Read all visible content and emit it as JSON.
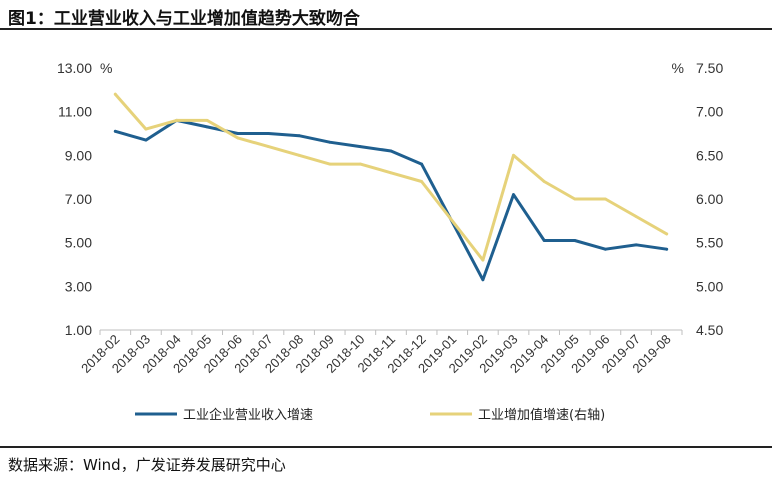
{
  "header": {
    "title": "图1：工业营业收入与工业增加值趋势大致吻合"
  },
  "footer": {
    "source": "数据来源：Wind，广发证券发展研究中心"
  },
  "chart_data": {
    "type": "line",
    "title": "图1：工业营业收入与工业增加值趋势大致吻合",
    "categories": [
      "2018-02",
      "2018-03",
      "2018-04",
      "2018-05",
      "2018-06",
      "2018-07",
      "2018-08",
      "2018-09",
      "2018-10",
      "2018-11",
      "2018-12",
      "2019-01",
      "2019-02",
      "2019-03",
      "2019-04",
      "2019-05",
      "2019-06",
      "2019-07",
      "2019-08"
    ],
    "left_axis": {
      "unit": "%",
      "ylim": [
        1.0,
        13.0
      ],
      "ticks": [
        "13.00",
        "11.00",
        "9.00",
        "7.00",
        "5.00",
        "3.00",
        "1.00"
      ],
      "tick_values": [
        13,
        11,
        9,
        7,
        5,
        3,
        1
      ]
    },
    "right_axis": {
      "unit": "%",
      "ylim": [
        4.5,
        7.5
      ],
      "ticks": [
        "7.50",
        "7.00",
        "6.50",
        "6.00",
        "5.50",
        "5.00",
        "4.50"
      ],
      "tick_values": [
        7.5,
        7.0,
        6.5,
        6.0,
        5.5,
        5.0,
        4.5
      ]
    },
    "series": [
      {
        "name": "工业企业营业收入增速",
        "axis": "left",
        "color": "#1f5f8f",
        "values": [
          10.1,
          9.7,
          10.6,
          10.3,
          10.0,
          10.0,
          9.9,
          9.6,
          9.4,
          9.2,
          8.6,
          null,
          3.3,
          7.2,
          5.1,
          5.1,
          4.7,
          4.9,
          4.7
        ]
      },
      {
        "name": "工业增加值增速(右轴)",
        "axis": "right",
        "color": "#e6d27a",
        "values": [
          7.2,
          6.8,
          6.9,
          6.9,
          6.7,
          6.6,
          6.5,
          6.4,
          6.4,
          6.3,
          6.2,
          null,
          5.3,
          6.5,
          6.2,
          6.0,
          6.0,
          5.8,
          5.6
        ]
      }
    ],
    "legend": [
      "工业企业营业收入增速",
      "工业增加值增速(右轴)"
    ],
    "legend_position": "bottom",
    "grid": false
  }
}
